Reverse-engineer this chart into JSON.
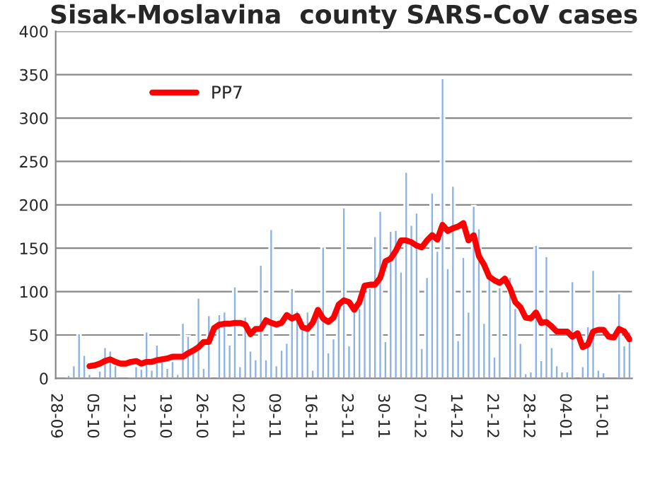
{
  "chart_data": {
    "type": "bar",
    "title": "Sisak-Moslavina  county SARS-CoV cases",
    "categories": [
      "28-09",
      null,
      null,
      null,
      null,
      null,
      null,
      "05-10",
      null,
      null,
      null,
      null,
      null,
      null,
      "12-10",
      null,
      null,
      null,
      null,
      null,
      null,
      "19-10",
      null,
      null,
      null,
      null,
      null,
      null,
      "26-10",
      null,
      null,
      null,
      null,
      null,
      null,
      "02-11",
      null,
      null,
      null,
      null,
      null,
      null,
      "09-11",
      null,
      null,
      null,
      null,
      null,
      null,
      "16-11",
      null,
      null,
      null,
      null,
      null,
      null,
      "23-11",
      null,
      null,
      null,
      null,
      null,
      null,
      "30-11",
      null,
      null,
      null,
      null,
      null,
      null,
      "07-12",
      null,
      null,
      null,
      null,
      null,
      null,
      "14-12",
      null,
      null,
      null,
      null,
      null,
      null,
      "21-12",
      null,
      null,
      null,
      null,
      null,
      null,
      "28-12",
      null,
      null,
      null,
      null,
      null,
      null,
      "04-01",
      null,
      null,
      null,
      null,
      null,
      null,
      "11-01",
      null,
      null,
      null,
      null,
      null
    ],
    "series": [
      {
        "color": "#8db3e2",
        "values": [
          null,
          null,
          4,
          15,
          52,
          27,
          5,
          null,
          9,
          36,
          32,
          15,
          null,
          null,
          2,
          14,
          11,
          54,
          10,
          39,
          20,
          12,
          20,
          5,
          64,
          49,
          30,
          93,
          12,
          73,
          null,
          74,
          77,
          39,
          106,
          14,
          71,
          32,
          22,
          131,
          22,
          172,
          15,
          33,
          41,
          104,
          78,
          60,
          77,
          10,
          73,
          152,
          30,
          46,
          83,
          197,
          38,
          77,
          81,
          98,
          104,
          164,
          193,
          43,
          170,
          171,
          123,
          238,
          177,
          191,
          35,
          117,
          214,
          147,
          346,
          127,
          222,
          44,
          140,
          77,
          199,
          173,
          64,
          117,
          25,
          105,
          null,
          117,
          81,
          41,
          6,
          8,
          154,
          21,
          141,
          36,
          15,
          8,
          8,
          112,
          null,
          14,
          60,
          125,
          10,
          7,
          null,
          null,
          98,
          38,
          54
        ]
      },
      {
        "type": "line",
        "name": "PP7",
        "color": "#ff0000",
        "values": [
          null,
          null,
          null,
          null,
          null,
          null,
          14,
          15,
          17,
          20,
          22,
          19,
          17,
          17,
          19,
          20,
          17,
          19,
          19,
          21,
          22,
          23,
          25,
          25,
          25,
          29,
          32,
          36,
          42,
          42,
          58,
          62,
          63,
          63,
          64,
          64,
          62,
          51,
          57,
          57,
          67,
          64,
          62,
          64,
          73,
          69,
          72,
          59,
          57,
          64,
          79,
          69,
          65,
          70,
          85,
          90,
          88,
          79,
          88,
          107,
          108,
          108,
          116,
          135,
          138,
          147,
          159,
          159,
          157,
          153,
          151,
          159,
          165,
          160,
          177,
          170,
          173,
          175,
          179,
          159,
          165,
          141,
          131,
          117,
          113,
          110,
          115,
          104,
          88,
          82,
          70,
          69,
          76,
          64,
          65,
          60,
          54,
          54,
          54,
          48,
          52,
          36,
          39,
          54,
          56,
          56,
          48,
          47,
          57,
          54,
          45
        ]
      }
    ],
    "ylim": [
      0,
      400
    ],
    "yticks": [
      0,
      50,
      100,
      150,
      200,
      250,
      300,
      350,
      400
    ],
    "grid": "y",
    "legend": "top left",
    "marker": "none",
    "line_style": "solid"
  }
}
